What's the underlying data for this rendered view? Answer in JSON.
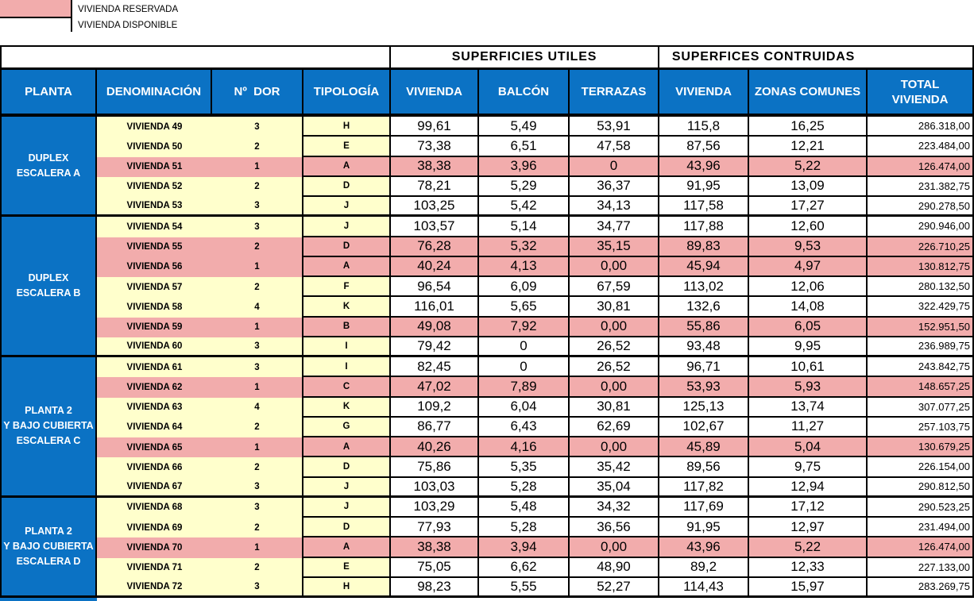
{
  "legend": {
    "reserved": "VIVIENDA RESERVADA",
    "available": "VIVIENDA DISPONIBLE"
  },
  "banners": {
    "utiles": "SUPERFICIES UTILES",
    "construidas": "SUPERFICES CONTRUIDAS"
  },
  "columns": [
    "PLANTA",
    "DENOMINACIÓN",
    "Nº  DOR",
    "TIPOLOGÍA",
    "VIVIENDA",
    "BALCÓN",
    "TERRAZAS",
    "VIVIENDA",
    "ZONAS COMUNES",
    "TOTAL\nVIVIENDA"
  ],
  "colors": {
    "header_blue": "#0b72c4",
    "reserved_pink": "#f2acac",
    "available_yellow": "#ffffcc"
  },
  "groups": [
    {
      "label": "DUPLEX\nESCALERA A",
      "rows": [
        {
          "den": "VIVIENDA 49",
          "dor": "3",
          "tip": "H",
          "sup_util": "99,61",
          "balcon": "5,49",
          "terrazas": "53,91",
          "sup_cons": "115,8",
          "zonas": "16,25",
          "total": "286.318,00",
          "reserved": false
        },
        {
          "den": "VIVIENDA 50",
          "dor": "2",
          "tip": "E",
          "sup_util": "73,38",
          "balcon": "6,51",
          "terrazas": "47,58",
          "sup_cons": "87,56",
          "zonas": "12,21",
          "total": "223.484,00",
          "reserved": false
        },
        {
          "den": "VIVIENDA 51",
          "dor": "1",
          "tip": "A",
          "sup_util": "38,38",
          "balcon": "3,96",
          "terrazas": "0",
          "sup_cons": "43,96",
          "zonas": "5,22",
          "total": "126.474,00",
          "reserved": true
        },
        {
          "den": "VIVIENDA 52",
          "dor": "2",
          "tip": "D",
          "sup_util": "78,21",
          "balcon": "5,29",
          "terrazas": "36,37",
          "sup_cons": "91,95",
          "zonas": "13,09",
          "total": "231.382,75",
          "reserved": false
        },
        {
          "den": "VIVIENDA 53",
          "dor": "3",
          "tip": "J",
          "sup_util": "103,25",
          "balcon": "5,42",
          "terrazas": "34,13",
          "sup_cons": "117,58",
          "zonas": "17,27",
          "total": "290.278,50",
          "reserved": false
        }
      ]
    },
    {
      "label": "DUPLEX\nESCALERA B",
      "rows": [
        {
          "den": "VIVIENDA 54",
          "dor": "3",
          "tip": "J",
          "sup_util": "103,57",
          "balcon": "5,14",
          "terrazas": "34,77",
          "sup_cons": "117,88",
          "zonas": "12,60",
          "total": "290.946,00",
          "reserved": false
        },
        {
          "den": "VIVIENDA 55",
          "dor": "2",
          "tip": "D",
          "sup_util": "76,28",
          "balcon": "5,32",
          "terrazas": "35,15",
          "sup_cons": "89,83",
          "zonas": "9,53",
          "total": "226.710,25",
          "reserved": true
        },
        {
          "den": "VIVIENDA 56",
          "dor": "1",
          "tip": "A",
          "sup_util": "40,24",
          "balcon": "4,13",
          "terrazas": "0,00",
          "sup_cons": "45,94",
          "zonas": "4,97",
          "total": "130.812,75",
          "reserved": true
        },
        {
          "den": "VIVIENDA 57",
          "dor": "2",
          "tip": "F",
          "sup_util": "96,54",
          "balcon": "6,09",
          "terrazas": "67,59",
          "sup_cons": "113,02",
          "zonas": "12,06",
          "total": "280.132,50",
          "reserved": false
        },
        {
          "den": "VIVIENDA 58",
          "dor": "4",
          "tip": "K",
          "sup_util": "116,01",
          "balcon": "5,65",
          "terrazas": "30,81",
          "sup_cons": "132,6",
          "zonas": "14,08",
          "total": "322.429,75",
          "reserved": false
        },
        {
          "den": "VIVIENDA 59",
          "dor": "1",
          "tip": "B",
          "sup_util": "49,08",
          "balcon": "7,92",
          "terrazas": "0,00",
          "sup_cons": "55,86",
          "zonas": "6,05",
          "total": "152.951,50",
          "reserved": true
        },
        {
          "den": "VIVIENDA 60",
          "dor": "3",
          "tip": "I",
          "sup_util": "79,42",
          "balcon": "0",
          "terrazas": "26,52",
          "sup_cons": "93,48",
          "zonas": "9,95",
          "total": "236.989,75",
          "reserved": false
        }
      ]
    },
    {
      "label": "PLANTA 2\nY BAJO CUBIERTA\nESCALERA C",
      "rows": [
        {
          "den": "VIVIENDA 61",
          "dor": "3",
          "tip": "I",
          "sup_util": "82,45",
          "balcon": "0",
          "terrazas": "26,52",
          "sup_cons": "96,71",
          "zonas": "10,61",
          "total": "243.842,75",
          "reserved": false
        },
        {
          "den": "VIVIENDA 62",
          "dor": "1",
          "tip": "C",
          "sup_util": "47,02",
          "balcon": "7,89",
          "terrazas": "0,00",
          "sup_cons": "53,93",
          "zonas": "5,93",
          "total": "148.657,25",
          "reserved": true
        },
        {
          "den": "VIVIENDA 63",
          "dor": "4",
          "tip": "K",
          "sup_util": "109,2",
          "balcon": "6,04",
          "terrazas": "30,81",
          "sup_cons": "125,13",
          "zonas": "13,74",
          "total": "307.077,25",
          "reserved": false
        },
        {
          "den": "VIVIENDA 64",
          "dor": "2",
          "tip": "G",
          "sup_util": "86,77",
          "balcon": "6,43",
          "terrazas": "62,69",
          "sup_cons": "102,67",
          "zonas": "11,27",
          "total": "257.103,75",
          "reserved": false
        },
        {
          "den": "VIVIENDA 65",
          "dor": "1",
          "tip": "A",
          "sup_util": "40,26",
          "balcon": "4,16",
          "terrazas": "0,00",
          "sup_cons": "45,89",
          "zonas": "5,04",
          "total": "130.679,25",
          "reserved": true
        },
        {
          "den": "VIVIENDA 66",
          "dor": "2",
          "tip": "D",
          "sup_util": "75,86",
          "balcon": "5,35",
          "terrazas": "35,42",
          "sup_cons": "89,56",
          "zonas": "9,75",
          "total": "226.154,00",
          "reserved": false
        },
        {
          "den": "VIVIENDA 67",
          "dor": "3",
          "tip": "J",
          "sup_util": "103,03",
          "balcon": "5,28",
          "terrazas": "35,04",
          "sup_cons": "117,82",
          "zonas": "12,94",
          "total": "290.812,50",
          "reserved": false
        }
      ]
    },
    {
      "label": "PLANTA 2\nY BAJO CUBIERTA\nESCALERA D",
      "rows": [
        {
          "den": "VIVIENDA 68",
          "dor": "3",
          "tip": "J",
          "sup_util": "103,29",
          "balcon": "5,48",
          "terrazas": "34,32",
          "sup_cons": "117,69",
          "zonas": "17,12",
          "total": "290.523,25",
          "reserved": false
        },
        {
          "den": "VIVIENDA 69",
          "dor": "2",
          "tip": "D",
          "sup_util": "77,93",
          "balcon": "5,28",
          "terrazas": "36,56",
          "sup_cons": "91,95",
          "zonas": "12,97",
          "total": "231.494,00",
          "reserved": false
        },
        {
          "den": "VIVIENDA 70",
          "dor": "1",
          "tip": "A",
          "sup_util": "38,38",
          "balcon": "3,94",
          "terrazas": "0,00",
          "sup_cons": "43,96",
          "zonas": "5,22",
          "total": "126.474,00",
          "reserved": true
        },
        {
          "den": "VIVIENDA 71",
          "dor": "2",
          "tip": "E",
          "sup_util": "75,05",
          "balcon": "6,62",
          "terrazas": "48,90",
          "sup_cons": "89,2",
          "zonas": "12,33",
          "total": "227.133,00",
          "reserved": false
        },
        {
          "den": "VIVIENDA 72",
          "dor": "3",
          "tip": "H",
          "sup_util": "98,23",
          "balcon": "5,55",
          "terrazas": "52,27",
          "sup_cons": "114,43",
          "zonas": "15,97",
          "total": "283.269,75",
          "reserved": false
        }
      ]
    }
  ]
}
